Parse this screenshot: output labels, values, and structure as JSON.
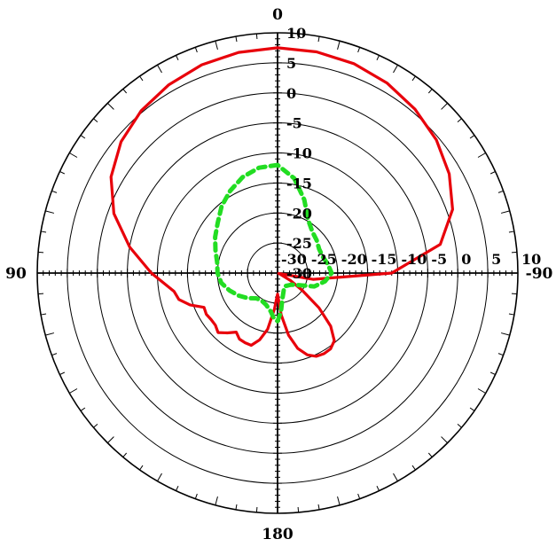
{
  "chart_data": {
    "type": "polar-line",
    "angle_labels": [
      {
        "angle": 0,
        "text": "0"
      },
      {
        "angle": 90,
        "text": "90"
      },
      {
        "angle": -90,
        "text": "-90"
      },
      {
        "angle": 180,
        "text": "180"
      }
    ],
    "radial_axis": {
      "range": [
        -30,
        10
      ],
      "tick_values": [
        -30,
        -25,
        -20,
        -15,
        -10,
        -5,
        0,
        5,
        10
      ],
      "tick_labels": [
        "-30",
        "-25",
        "-20",
        "-15",
        "-10",
        "-5",
        "0",
        "5",
        "10"
      ]
    },
    "angular_direction": "counterclockwise-from-top",
    "grid": true,
    "series": [
      {
        "color": "#e8000b",
        "style": "solid",
        "points": [
          [
            0,
            7.5
          ],
          [
            10,
            7.3
          ],
          [
            20,
            6.9
          ],
          [
            30,
            6.2
          ],
          [
            40,
            5.3
          ],
          [
            50,
            4
          ],
          [
            60,
            2
          ],
          [
            70,
            -1
          ],
          [
            80,
            -5
          ],
          [
            90,
            -9
          ],
          [
            100,
            -12.5
          ],
          [
            105,
            -13
          ],
          [
            110,
            -14.5
          ],
          [
            115,
            -16.5
          ],
          [
            120,
            -16.3
          ],
          [
            125,
            -16.5
          ],
          [
            130,
            -16.5
          ],
          [
            135,
            -16
          ],
          [
            140,
            -17
          ],
          [
            145,
            -18
          ],
          [
            150,
            -17.3
          ],
          [
            155,
            -17.2
          ],
          [
            160,
            -17.2
          ],
          [
            165,
            -18.5
          ],
          [
            170,
            -20.5
          ],
          [
            175,
            -24
          ],
          [
            180,
            -26.5
          ],
          [
            185,
            -23
          ],
          [
            190,
            -19.5
          ],
          [
            195,
            -17
          ],
          [
            200,
            -15.5
          ],
          [
            205,
            -14.7
          ],
          [
            210,
            -14.5
          ],
          [
            215,
            -14.6
          ],
          [
            220,
            -15.3
          ],
          [
            225,
            -17.5
          ],
          [
            230,
            -21
          ],
          [
            235,
            -25
          ],
          [
            240,
            -27.5
          ],
          [
            245,
            -29.5
          ],
          [
            250,
            -29.8
          ],
          [
            260,
            -24
          ],
          [
            270,
            -11
          ],
          [
            280,
            -2.5
          ],
          [
            290,
            1
          ],
          [
            300,
            3
          ],
          [
            310,
            4.5
          ],
          [
            320,
            5.6
          ],
          [
            330,
            6.5
          ],
          [
            340,
            7.1
          ],
          [
            350,
            7.4
          ]
        ]
      },
      {
        "color": "#22dd22",
        "style": "dashed",
        "points": [
          [
            0,
            -12
          ],
          [
            10,
            -12.2
          ],
          [
            20,
            -13
          ],
          [
            30,
            -14.2
          ],
          [
            40,
            -15.5
          ],
          [
            50,
            -17
          ],
          [
            60,
            -18
          ],
          [
            70,
            -19
          ],
          [
            80,
            -19.8
          ],
          [
            90,
            -20
          ],
          [
            100,
            -20.5
          ],
          [
            110,
            -21.5
          ],
          [
            120,
            -22.5
          ],
          [
            130,
            -23.5
          ],
          [
            140,
            -24.5
          ],
          [
            150,
            -24.7
          ],
          [
            160,
            -24.4
          ],
          [
            170,
            -23.5
          ],
          [
            175,
            -22.5
          ],
          [
            180,
            -22
          ],
          [
            185,
            -23.5
          ],
          [
            190,
            -25.5
          ],
          [
            200,
            -27
          ],
          [
            210,
            -27.5
          ],
          [
            220,
            -27.3
          ],
          [
            230,
            -27
          ],
          [
            240,
            -26
          ],
          [
            250,
            -23.5
          ],
          [
            260,
            -22
          ],
          [
            270,
            -21
          ],
          [
            280,
            -21.5
          ],
          [
            290,
            -22
          ],
          [
            300,
            -22
          ],
          [
            310,
            -21.5
          ],
          [
            320,
            -21
          ],
          [
            330,
            -19.8
          ],
          [
            340,
            -17
          ],
          [
            350,
            -14
          ]
        ]
      }
    ]
  }
}
